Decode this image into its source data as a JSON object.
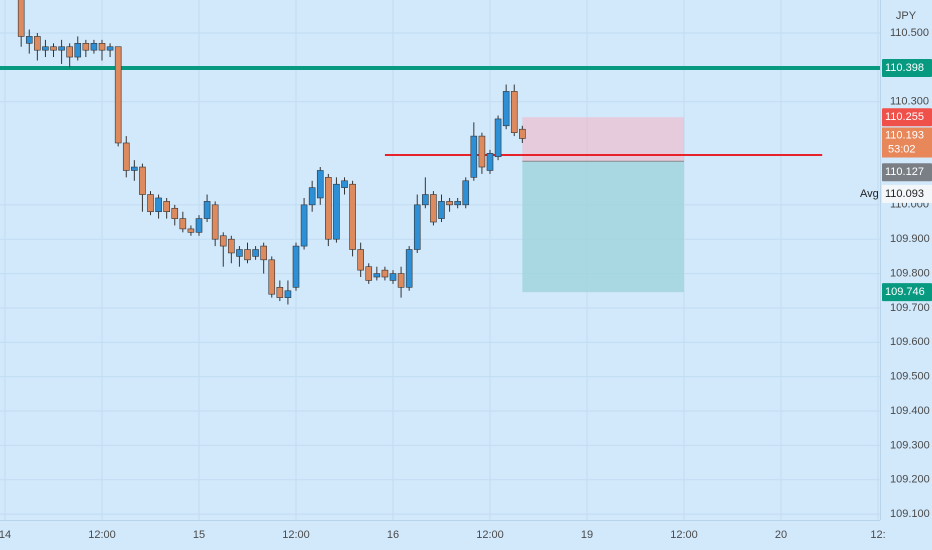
{
  "chart_data": {
    "type": "candlestick",
    "currency": "JPY",
    "up_color": "#2d8fd6",
    "down_color": "#dc8a5e",
    "background": "#d2e9fc",
    "grid": true,
    "xlim": [
      -0.62,
      108.25
    ],
    "ylim": [
      109.083,
      110.596
    ],
    "xticks": [
      {
        "value": 0,
        "label": "14"
      },
      {
        "value": 12,
        "label": "12:00"
      },
      {
        "value": 24,
        "label": "15"
      },
      {
        "value": 36,
        "label": "12:00"
      },
      {
        "value": 48,
        "label": "16"
      },
      {
        "value": 60,
        "label": "12:00"
      },
      {
        "value": 72,
        "label": "19"
      },
      {
        "value": 84,
        "label": "12:00"
      },
      {
        "value": 96,
        "label": "20"
      },
      {
        "value": 108,
        "label": "12:"
      }
    ],
    "yticks": [
      {
        "value": 110.5,
        "label": "110.500"
      },
      {
        "value": 110.3,
        "label": "110.300"
      },
      {
        "value": 110.0,
        "label": "110.000"
      },
      {
        "value": 109.9,
        "label": "109.900"
      },
      {
        "value": 109.8,
        "label": "109.800"
      },
      {
        "value": 109.7,
        "label": "109.700"
      },
      {
        "value": 109.6,
        "label": "109.600"
      },
      {
        "value": 109.5,
        "label": "109.500"
      },
      {
        "value": 109.4,
        "label": "109.400"
      },
      {
        "value": 109.3,
        "label": "109.300"
      },
      {
        "value": 109.2,
        "label": "109.200"
      },
      {
        "value": 109.1,
        "label": "109.100"
      }
    ],
    "x": [
      2,
      3,
      4,
      5,
      6,
      7,
      8,
      9,
      10,
      11,
      12,
      13,
      14,
      15,
      16,
      17,
      18,
      19,
      20,
      21,
      22,
      23,
      24,
      25,
      26,
      27,
      28,
      29,
      30,
      31,
      32,
      33,
      34,
      35,
      36,
      37,
      38,
      39,
      40,
      41,
      42,
      43,
      44,
      45,
      46,
      47,
      48,
      49,
      50,
      51,
      52,
      53,
      54,
      55,
      56,
      57,
      58,
      59,
      60,
      61,
      62,
      63,
      64
    ],
    "open": [
      110.6,
      110.47,
      110.49,
      110.45,
      110.46,
      110.45,
      110.46,
      110.43,
      110.47,
      110.45,
      110.47,
      110.45,
      110.46,
      110.18,
      110.1,
      110.11,
      110.03,
      109.98,
      110.01,
      109.99,
      109.96,
      109.93,
      109.92,
      109.96,
      110.0,
      109.91,
      109.9,
      109.85,
      109.87,
      109.85,
      109.88,
      109.84,
      109.76,
      109.73,
      109.76,
      109.88,
      110.0,
      110.02,
      110.08,
      109.9,
      110.05,
      110.06,
      109.87,
      109.82,
      109.79,
      109.81,
      109.78,
      109.8,
      109.76,
      109.87,
      110.0,
      110.03,
      109.96,
      110.01,
      110.0,
      110.0,
      110.08,
      110.2,
      110.1,
      110.14,
      110.23,
      110.33,
      110.22
    ],
    "high": [
      110.65,
      110.51,
      110.5,
      110.48,
      110.47,
      110.48,
      110.47,
      110.49,
      110.48,
      110.48,
      110.48,
      110.47,
      110.46,
      110.2,
      110.13,
      110.12,
      110.04,
      110.03,
      110.02,
      110.0,
      109.98,
      109.94,
      109.97,
      110.03,
      110.01,
      109.92,
      109.91,
      109.88,
      109.89,
      109.88,
      109.89,
      109.85,
      109.78,
      109.78,
      109.89,
      110.02,
      110.07,
      110.11,
      110.09,
      110.08,
      110.08,
      110.07,
      109.89,
      109.83,
      109.82,
      109.82,
      109.81,
      109.82,
      109.88,
      110.03,
      110.08,
      110.04,
      110.03,
      110.02,
      110.02,
      110.08,
      110.24,
      110.21,
      110.16,
      110.26,
      110.35,
      110.35,
      110.23
    ],
    "low": [
      110.46,
      110.44,
      110.42,
      110.43,
      110.43,
      110.41,
      110.4,
      110.42,
      110.43,
      110.44,
      110.42,
      110.43,
      110.17,
      110.08,
      110.07,
      109.98,
      109.97,
      109.96,
      109.96,
      109.94,
      109.92,
      109.91,
      109.91,
      109.95,
      109.88,
      109.82,
      109.83,
      109.82,
      109.83,
      109.84,
      109.8,
      109.73,
      109.72,
      109.71,
      109.75,
      109.87,
      109.98,
      110.0,
      109.88,
      109.89,
      110.03,
      109.85,
      109.79,
      109.77,
      109.78,
      109.78,
      109.77,
      109.73,
      109.75,
      109.86,
      109.99,
      109.94,
      109.95,
      109.98,
      109.99,
      109.99,
      110.07,
      110.09,
      110.09,
      110.13,
      110.22,
      110.2,
      110.18
    ],
    "close": [
      110.49,
      110.49,
      110.45,
      110.46,
      110.45,
      110.46,
      110.43,
      110.47,
      110.45,
      110.47,
      110.45,
      110.46,
      110.18,
      110.1,
      110.11,
      110.03,
      109.98,
      110.02,
      109.98,
      109.96,
      109.93,
      109.92,
      109.96,
      110.01,
      109.9,
      109.88,
      109.86,
      109.87,
      109.84,
      109.87,
      109.84,
      109.74,
      109.73,
      109.75,
      109.88,
      110.0,
      110.05,
      110.1,
      109.9,
      110.06,
      110.07,
      109.87,
      109.81,
      109.78,
      109.8,
      109.79,
      109.8,
      109.76,
      109.87,
      110.0,
      110.03,
      109.95,
      110.01,
      110.0,
      110.01,
      110.07,
      110.2,
      110.11,
      110.15,
      110.25,
      110.33,
      110.21,
      110.193
    ],
    "hline": {
      "value": 110.398,
      "color": "#089981"
    },
    "trendline": {
      "x": [
        47.0,
        101.1
      ],
      "y": [
        110.145,
        110.145
      ],
      "color": "#e8222a"
    },
    "position": {
      "x": [
        64,
        84
      ],
      "entry": 110.127,
      "stop": 110.255,
      "target": 109.746
    },
    "last": {
      "value": 110.193,
      "countdown": "53:02"
    },
    "avg": {
      "name": "Avg",
      "value": 110.093
    }
  }
}
